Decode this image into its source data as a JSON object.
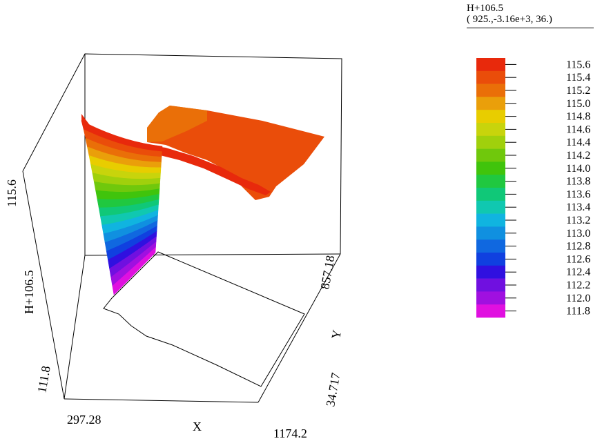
{
  "chart_data": {
    "type": "surface3d",
    "axes": {
      "x": {
        "label": "X",
        "min_label": "297.28",
        "max_label": "1174.2",
        "range": [
          297.28,
          1174.2
        ]
      },
      "y": {
        "label": "Y",
        "min_label": "34.717",
        "max_label": "857.18",
        "range": [
          34.717,
          857.18
        ]
      },
      "z": {
        "label": "H+106.5",
        "min_label": "111.8",
        "max_label": "115.6",
        "range": [
          111.8,
          115.6
        ]
      }
    },
    "legend": {
      "title": "H+106.5",
      "subtitle": "( 925.,-3.16e+3, 36.)",
      "placement": "right",
      "levels": [
        "115.6",
        "115.4",
        "115.2",
        "115.0",
        "114.8",
        "114.6",
        "114.4",
        "114.2",
        "114.0",
        "113.8",
        "113.6",
        "113.4",
        "113.2",
        "113.0",
        "112.8",
        "112.6",
        "112.4",
        "112.2",
        "112.0",
        "111.8"
      ],
      "colors": [
        "#e8290c",
        "#ea4d0a",
        "#ea6f08",
        "#ea9f0a",
        "#e8cd00",
        "#c8d40c",
        "#a0d00c",
        "#70c80c",
        "#40c40c",
        "#20c840",
        "#10c878",
        "#10c8b0",
        "#10b4e0",
        "#1090e0",
        "#1068e0",
        "#1040e0",
        "#3010e0",
        "#7010e0",
        "#a010e0",
        "#e010e0"
      ]
    }
  }
}
